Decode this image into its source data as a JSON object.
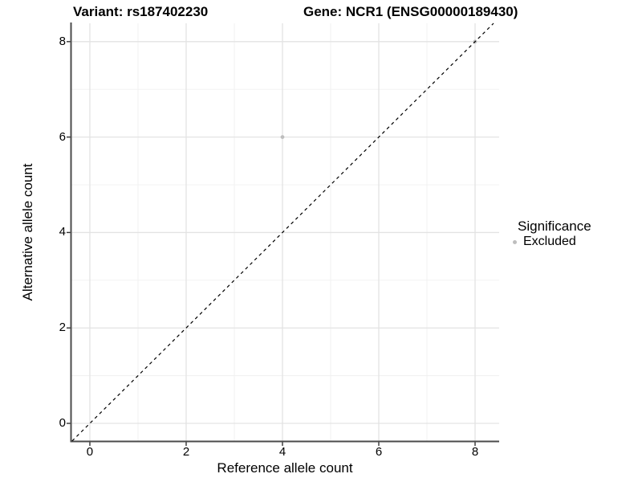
{
  "header": {
    "variant_title": "Variant: rs187402230",
    "gene_title": "Gene: NCR1 (ENSG00000189430)"
  },
  "chart_data": {
    "type": "scatter",
    "title_left": "Variant: rs187402230",
    "title_right": "Gene: NCR1 (ENSG00000189430)",
    "xlabel": "Reference allele count",
    "ylabel": "Alternative allele count",
    "x_ticks": [
      0,
      2,
      4,
      6,
      8
    ],
    "y_ticks": [
      0,
      2,
      4,
      6,
      8
    ],
    "x_minor_ticks": [
      1,
      3,
      5,
      7
    ],
    "y_minor_ticks": [
      1,
      3,
      5,
      7
    ],
    "xlim": [
      -0.383,
      8.5
    ],
    "ylim": [
      -0.37,
      8.384
    ],
    "grid": true,
    "series": [
      {
        "name": "Excluded",
        "color": "#bebebe",
        "points": [
          {
            "x": 4,
            "y": 6
          },
          {
            "x": 8,
            "y": 8
          }
        ]
      }
    ],
    "reference_line": {
      "slope": 1,
      "intercept": 0,
      "style": "dashed",
      "color": "#000000"
    },
    "point_radius": 2.4,
    "colors": {
      "major_grid": "#e3e3e3",
      "minor_grid": "#f0f0f0",
      "axis_line": "#4b4b4b",
      "tick_mark": "#333333",
      "text": "#000000",
      "background": "#ffffff"
    },
    "legend": {
      "title": "Significance",
      "position": "right",
      "items": [
        {
          "label": "Excluded",
          "color": "#bebebe"
        }
      ]
    }
  }
}
